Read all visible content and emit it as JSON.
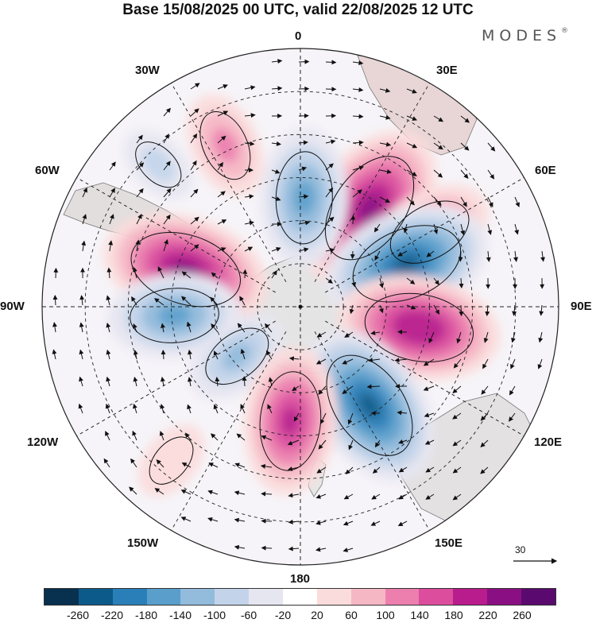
{
  "title": "Base 15/08/2025 00 UTC, valid 22/08/2025 12 UTC",
  "brand": "MODES",
  "brand_mark": "®",
  "longitude_labels": {
    "top": "0",
    "top_left": "30W",
    "top_right": "30E",
    "left_upper": "60W",
    "right_upper": "60E",
    "left": "90W",
    "right": "90E",
    "left_lower": "120W",
    "right_lower": "120E",
    "bottom_left": "150W",
    "bottom_right": "150E",
    "bottom": "180"
  },
  "reference_vector": "30",
  "colorbar": {
    "colors": [
      "#08304f",
      "#0c5a8a",
      "#2a7fb8",
      "#5a9fcc",
      "#93bbdc",
      "#c3d4ea",
      "#e6e6f1",
      "#ffffff",
      "#fbdcdc",
      "#f6b7c5",
      "#ec7fae",
      "#dc4d9e",
      "#b91c8c",
      "#8a0f82",
      "#5a0a6e"
    ],
    "ticks": [
      "-260",
      "-220",
      "-180",
      "-140",
      "-100",
      "-60",
      "-20",
      "20",
      "60",
      "100",
      "140",
      "180",
      "220",
      "260"
    ]
  },
  "anomalies": [
    {
      "kind": "positive",
      "lon": -35,
      "colat": 42,
      "value": 240
    },
    {
      "kind": "positive",
      "lon": -60,
      "colat": 52,
      "value": 150
    },
    {
      "kind": "negative",
      "lon": -2,
      "colat": 38,
      "value": -170
    },
    {
      "kind": "negative",
      "lon": -68,
      "colat": 40,
      "value": -230
    },
    {
      "kind": "positive",
      "lon": 25,
      "colat": 62,
      "value": 110
    },
    {
      "kind": "positive",
      "lon": 72,
      "colat": 42,
      "value": 230
    },
    {
      "kind": "negative",
      "lon": 94,
      "colat": 44,
      "value": -160
    },
    {
      "kind": "negative",
      "lon": 128,
      "colat": 28,
      "value": -110
    },
    {
      "kind": "positive",
      "lon": -100,
      "colat": 42,
      "value": 220
    },
    {
      "kind": "negative",
      "lon": -145,
      "colat": 42,
      "value": -230
    },
    {
      "kind": "positive",
      "lon": 175,
      "colat": 40,
      "value": 190
    },
    {
      "kind": "positive",
      "lon": 140,
      "colat": 70,
      "value": 60
    },
    {
      "kind": "negative",
      "lon": 45,
      "colat": 70,
      "value": -60
    }
  ],
  "map_legend": {
    "shading": "anomaly",
    "arrows": "wind"
  }
}
